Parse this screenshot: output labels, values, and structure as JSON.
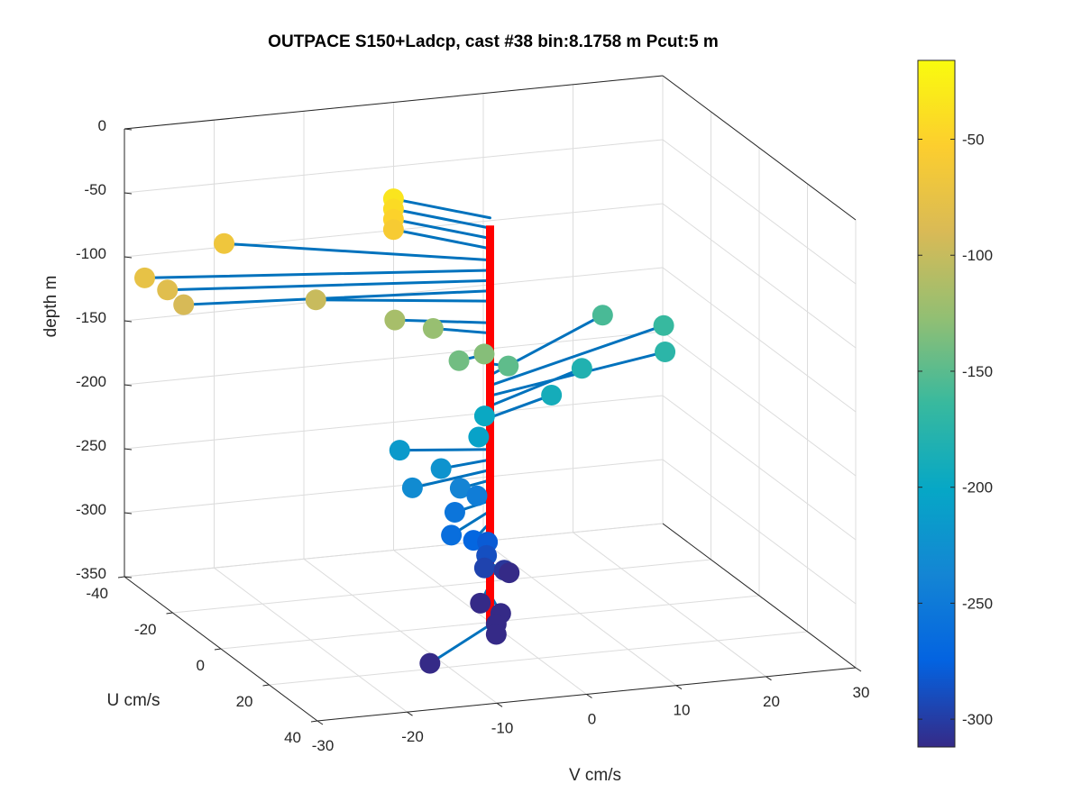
{
  "chart_data": {
    "type": "scatter",
    "title": "OUTPACE S150+Ladcp, cast #38 bin:8.1758 m  Pcut:5 m",
    "xlabel": "V cm/s",
    "ylabel": "U cm/s",
    "zlabel": "depth m",
    "xlim": [
      -30,
      30
    ],
    "ylim": [
      -40,
      40
    ],
    "zlim": [
      -350,
      0
    ],
    "x_ticks": [
      -30,
      -20,
      -10,
      0,
      10,
      20,
      30
    ],
    "y_ticks": [
      -40,
      -20,
      0,
      20,
      40
    ],
    "z_ticks": [
      0,
      -50,
      -100,
      -150,
      -200,
      -250,
      -300,
      -350
    ],
    "x_tick_labels": [
      "-30",
      "-20",
      "-10",
      "0",
      "10",
      "20",
      "30"
    ],
    "y_tick_labels": [
      "-40",
      "-20",
      "0",
      "20",
      "40"
    ],
    "z_tick_labels": [
      "0",
      "-50",
      "-100",
      "-150",
      "-200",
      "-250",
      "-300",
      "-350"
    ],
    "grid": true,
    "colormap": "parula",
    "colorbar": {
      "clim": [
        -312,
        -16
      ],
      "ticks": [
        -50,
        -100,
        -150,
        -200,
        -250,
        -300
      ],
      "tick_labels": [
        "-50",
        "-100",
        "-150",
        "-200",
        "-250",
        "-300"
      ]
    },
    "vector_color": "#0072bd",
    "profile_color": "#ff0000",
    "profile_line": {
      "z_top": -40,
      "z_bottom": -350
    },
    "points": [
      {
        "v": -7.0,
        "u": -14.0,
        "z": -34
      },
      {
        "v": -7.0,
        "u": -14.0,
        "z": -42
      },
      {
        "v": -7.0,
        "u": -14.0,
        "z": -50
      },
      {
        "v": -7.0,
        "u": -14.0,
        "z": -58
      },
      {
        "v": -24.0,
        "u": -21.0,
        "z": -67
      },
      {
        "v": -35.0,
        "u": -13.0,
        "z": -75
      },
      {
        "v": -33.0,
        "u": -11.0,
        "z": -83
      },
      {
        "v": -32.0,
        "u": -8.0,
        "z": -91
      },
      {
        "v": -17.0,
        "u": -9.0,
        "z": -99
      },
      {
        "v": -9.0,
        "u": -6.0,
        "z": -116
      },
      {
        "v": -5.0,
        "u": -5.0,
        "z": -124
      },
      {
        "v": -2.0,
        "u": 5.0,
        "z": -132
      },
      {
        "v": -4.0,
        "u": 2.0,
        "z": -140
      },
      {
        "v": 1.5,
        "u": 2.0,
        "z": -148
      },
      {
        "v": 19.0,
        "u": -24.0,
        "z": -157
      },
      {
        "v": 25.0,
        "u": -21.0,
        "z": -165
      },
      {
        "v": 23.0,
        "u": -13.0,
        "z": -173
      },
      {
        "v": 14.0,
        "u": -14.0,
        "z": -181
      },
      {
        "v": 9.0,
        "u": -8.0,
        "z": -190
      },
      {
        "v": 1.0,
        "u": -6.0,
        "z": -198
      },
      {
        "v": -1.0,
        "u": -1.0,
        "z": -206
      },
      {
        "v": -9.0,
        "u": -4.0,
        "z": -215
      },
      {
        "v": -6.0,
        "u": 2.0,
        "z": -223
      },
      {
        "v": -10.0,
        "u": 5.0,
        "z": -231
      },
      {
        "v": -4.0,
        "u": 2.5,
        "z": -239
      },
      {
        "v": -2.0,
        "u": 2.0,
        "z": -247
      },
      {
        "v": -5.0,
        "u": 4.0,
        "z": -255
      },
      {
        "v": -7.0,
        "u": 10.0,
        "z": -263
      },
      {
        "v": -4.0,
        "u": 8.0,
        "z": -272
      },
      {
        "v": -1.5,
        "u": 4.5,
        "z": -280
      },
      {
        "v": -2.0,
        "u": 6.0,
        "z": -288
      },
      {
        "v": -2.5,
        "u": 7.0,
        "z": -296
      },
      {
        "v": 0.5,
        "u": 4.0,
        "z": -304
      },
      {
        "v": 2.0,
        "u": 0.5,
        "z": -312
      },
      {
        "v": -3.5,
        "u": 9.0,
        "z": -320
      },
      {
        "v": -1.5,
        "u": 10.0,
        "z": -328
      },
      {
        "v": -2.0,
        "u": 10.0,
        "z": -336
      },
      {
        "v": -2.0,
        "u": 10.0,
        "z": -344
      },
      {
        "v": -11.0,
        "u": 16.0,
        "z": -352
      }
    ]
  }
}
